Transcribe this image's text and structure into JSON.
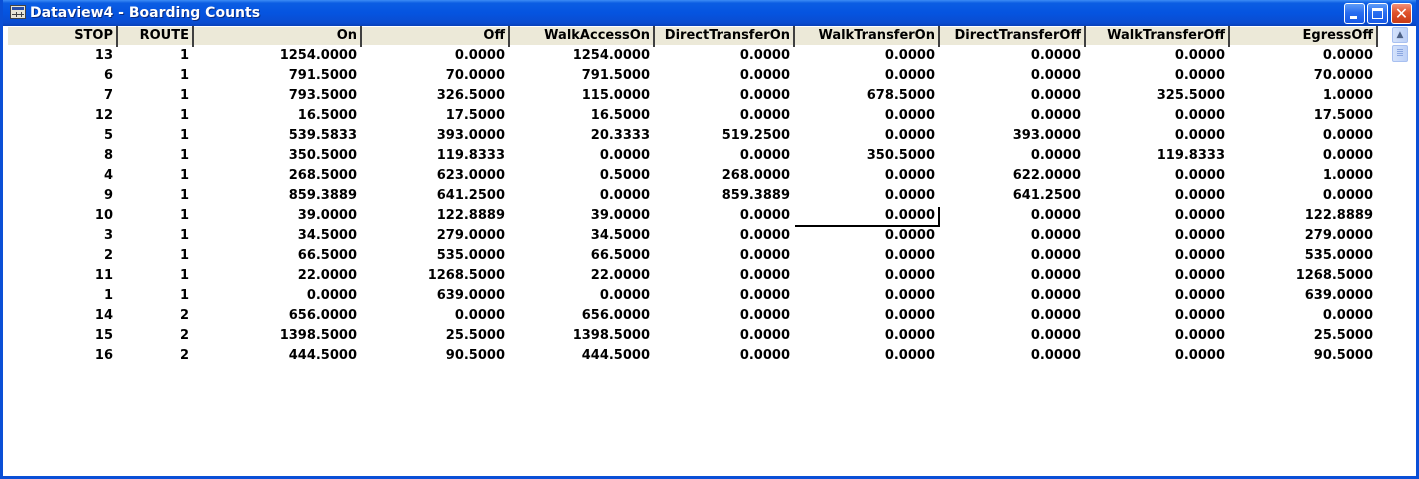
{
  "window": {
    "title": "Dataview4 - Boarding Counts",
    "icon": "table-grid-icon",
    "buttons": {
      "minimize": "minimize-icon",
      "maximize": "maximize-icon",
      "close": "close-icon"
    },
    "colors": {
      "titlebar": "#0554e0",
      "close_button": "#e0532c",
      "header_bg": "#ece9d8"
    }
  },
  "grid": {
    "columns": [
      "STOP",
      "ROUTE",
      "On",
      "Off",
      "WalkAccessOn",
      "DirectTransferOn",
      "WalkTransferOn",
      "DirectTransferOff",
      "WalkTransferOff",
      "EgressOff"
    ],
    "rows": [
      [
        "13",
        "1",
        "1254.0000",
        "0.0000",
        "1254.0000",
        "0.0000",
        "0.0000",
        "0.0000",
        "0.0000",
        "0.0000"
      ],
      [
        "6",
        "1",
        "791.5000",
        "70.0000",
        "791.5000",
        "0.0000",
        "0.0000",
        "0.0000",
        "0.0000",
        "70.0000"
      ],
      [
        "7",
        "1",
        "793.5000",
        "326.5000",
        "115.0000",
        "0.0000",
        "678.5000",
        "0.0000",
        "325.5000",
        "1.0000"
      ],
      [
        "12",
        "1",
        "16.5000",
        "17.5000",
        "16.5000",
        "0.0000",
        "0.0000",
        "0.0000",
        "0.0000",
        "17.5000"
      ],
      [
        "5",
        "1",
        "539.5833",
        "393.0000",
        "20.3333",
        "519.2500",
        "0.0000",
        "393.0000",
        "0.0000",
        "0.0000"
      ],
      [
        "8",
        "1",
        "350.5000",
        "119.8333",
        "0.0000",
        "0.0000",
        "350.5000",
        "0.0000",
        "119.8333",
        "0.0000"
      ],
      [
        "4",
        "1",
        "268.5000",
        "623.0000",
        "0.5000",
        "268.0000",
        "0.0000",
        "622.0000",
        "0.0000",
        "1.0000"
      ],
      [
        "9",
        "1",
        "859.3889",
        "641.2500",
        "0.0000",
        "859.3889",
        "0.0000",
        "641.2500",
        "0.0000",
        "0.0000"
      ],
      [
        "10",
        "1",
        "39.0000",
        "122.8889",
        "39.0000",
        "0.0000",
        "0.0000",
        "0.0000",
        "0.0000",
        "122.8889"
      ],
      [
        "3",
        "1",
        "34.5000",
        "279.0000",
        "34.5000",
        "0.0000",
        "0.0000",
        "0.0000",
        "0.0000",
        "279.0000"
      ],
      [
        "2",
        "1",
        "66.5000",
        "535.0000",
        "66.5000",
        "0.0000",
        "0.0000",
        "0.0000",
        "0.0000",
        "535.0000"
      ],
      [
        "11",
        "1",
        "22.0000",
        "1268.5000",
        "22.0000",
        "0.0000",
        "0.0000",
        "0.0000",
        "0.0000",
        "1268.5000"
      ],
      [
        "1",
        "1",
        "0.0000",
        "639.0000",
        "0.0000",
        "0.0000",
        "0.0000",
        "0.0000",
        "0.0000",
        "639.0000"
      ],
      [
        "14",
        "2",
        "656.0000",
        "0.0000",
        "656.0000",
        "0.0000",
        "0.0000",
        "0.0000",
        "0.0000",
        "0.0000"
      ],
      [
        "15",
        "2",
        "1398.5000",
        "25.5000",
        "1398.5000",
        "0.0000",
        "0.0000",
        "0.0000",
        "0.0000",
        "25.5000"
      ],
      [
        "16",
        "2",
        "444.5000",
        "90.5000",
        "444.5000",
        "0.0000",
        "0.0000",
        "0.0000",
        "0.0000",
        "90.5000"
      ]
    ],
    "selected_cell": {
      "row": 8,
      "column": "WalkTransferOn"
    }
  },
  "scrollbar": {
    "up_icon": "scroll-up-arrow-icon",
    "thumb_icon": "scroll-thumb-grip-icon"
  }
}
